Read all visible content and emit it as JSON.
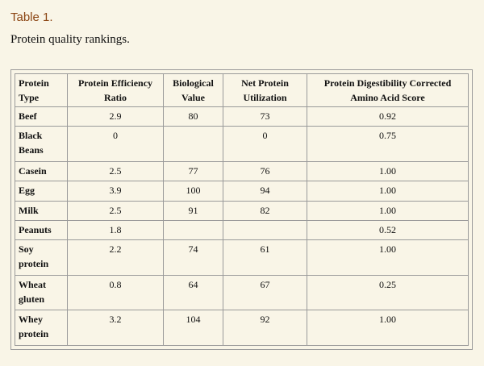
{
  "table_label": "Table 1.",
  "caption": "Protein quality rankings.",
  "headers": [
    "Protein Type",
    "Protein Efficiency Ratio",
    "Biological Value",
    "Net Protein Utilization",
    "Protein Digestibility Corrected Amino Acid Score"
  ],
  "rows": [
    [
      "Beef",
      "2.9",
      "80",
      "73",
      "0.92"
    ],
    [
      "Black Beans",
      "0",
      "",
      "0",
      "0.75"
    ],
    [
      "Casein",
      "2.5",
      "77",
      "76",
      "1.00"
    ],
    [
      "Egg",
      "3.9",
      "100",
      "94",
      "1.00"
    ],
    [
      "Milk",
      "2.5",
      "91",
      "82",
      "1.00"
    ],
    [
      "Peanuts",
      "1.8",
      "",
      "",
      "0.52"
    ],
    [
      "Soy protein",
      "2.2",
      "74",
      "61",
      "1.00"
    ],
    [
      "Wheat gluten",
      "0.8",
      "64",
      "67",
      "0.25"
    ],
    [
      "Whey protein",
      "3.2",
      "104",
      "92",
      "1.00"
    ]
  ]
}
